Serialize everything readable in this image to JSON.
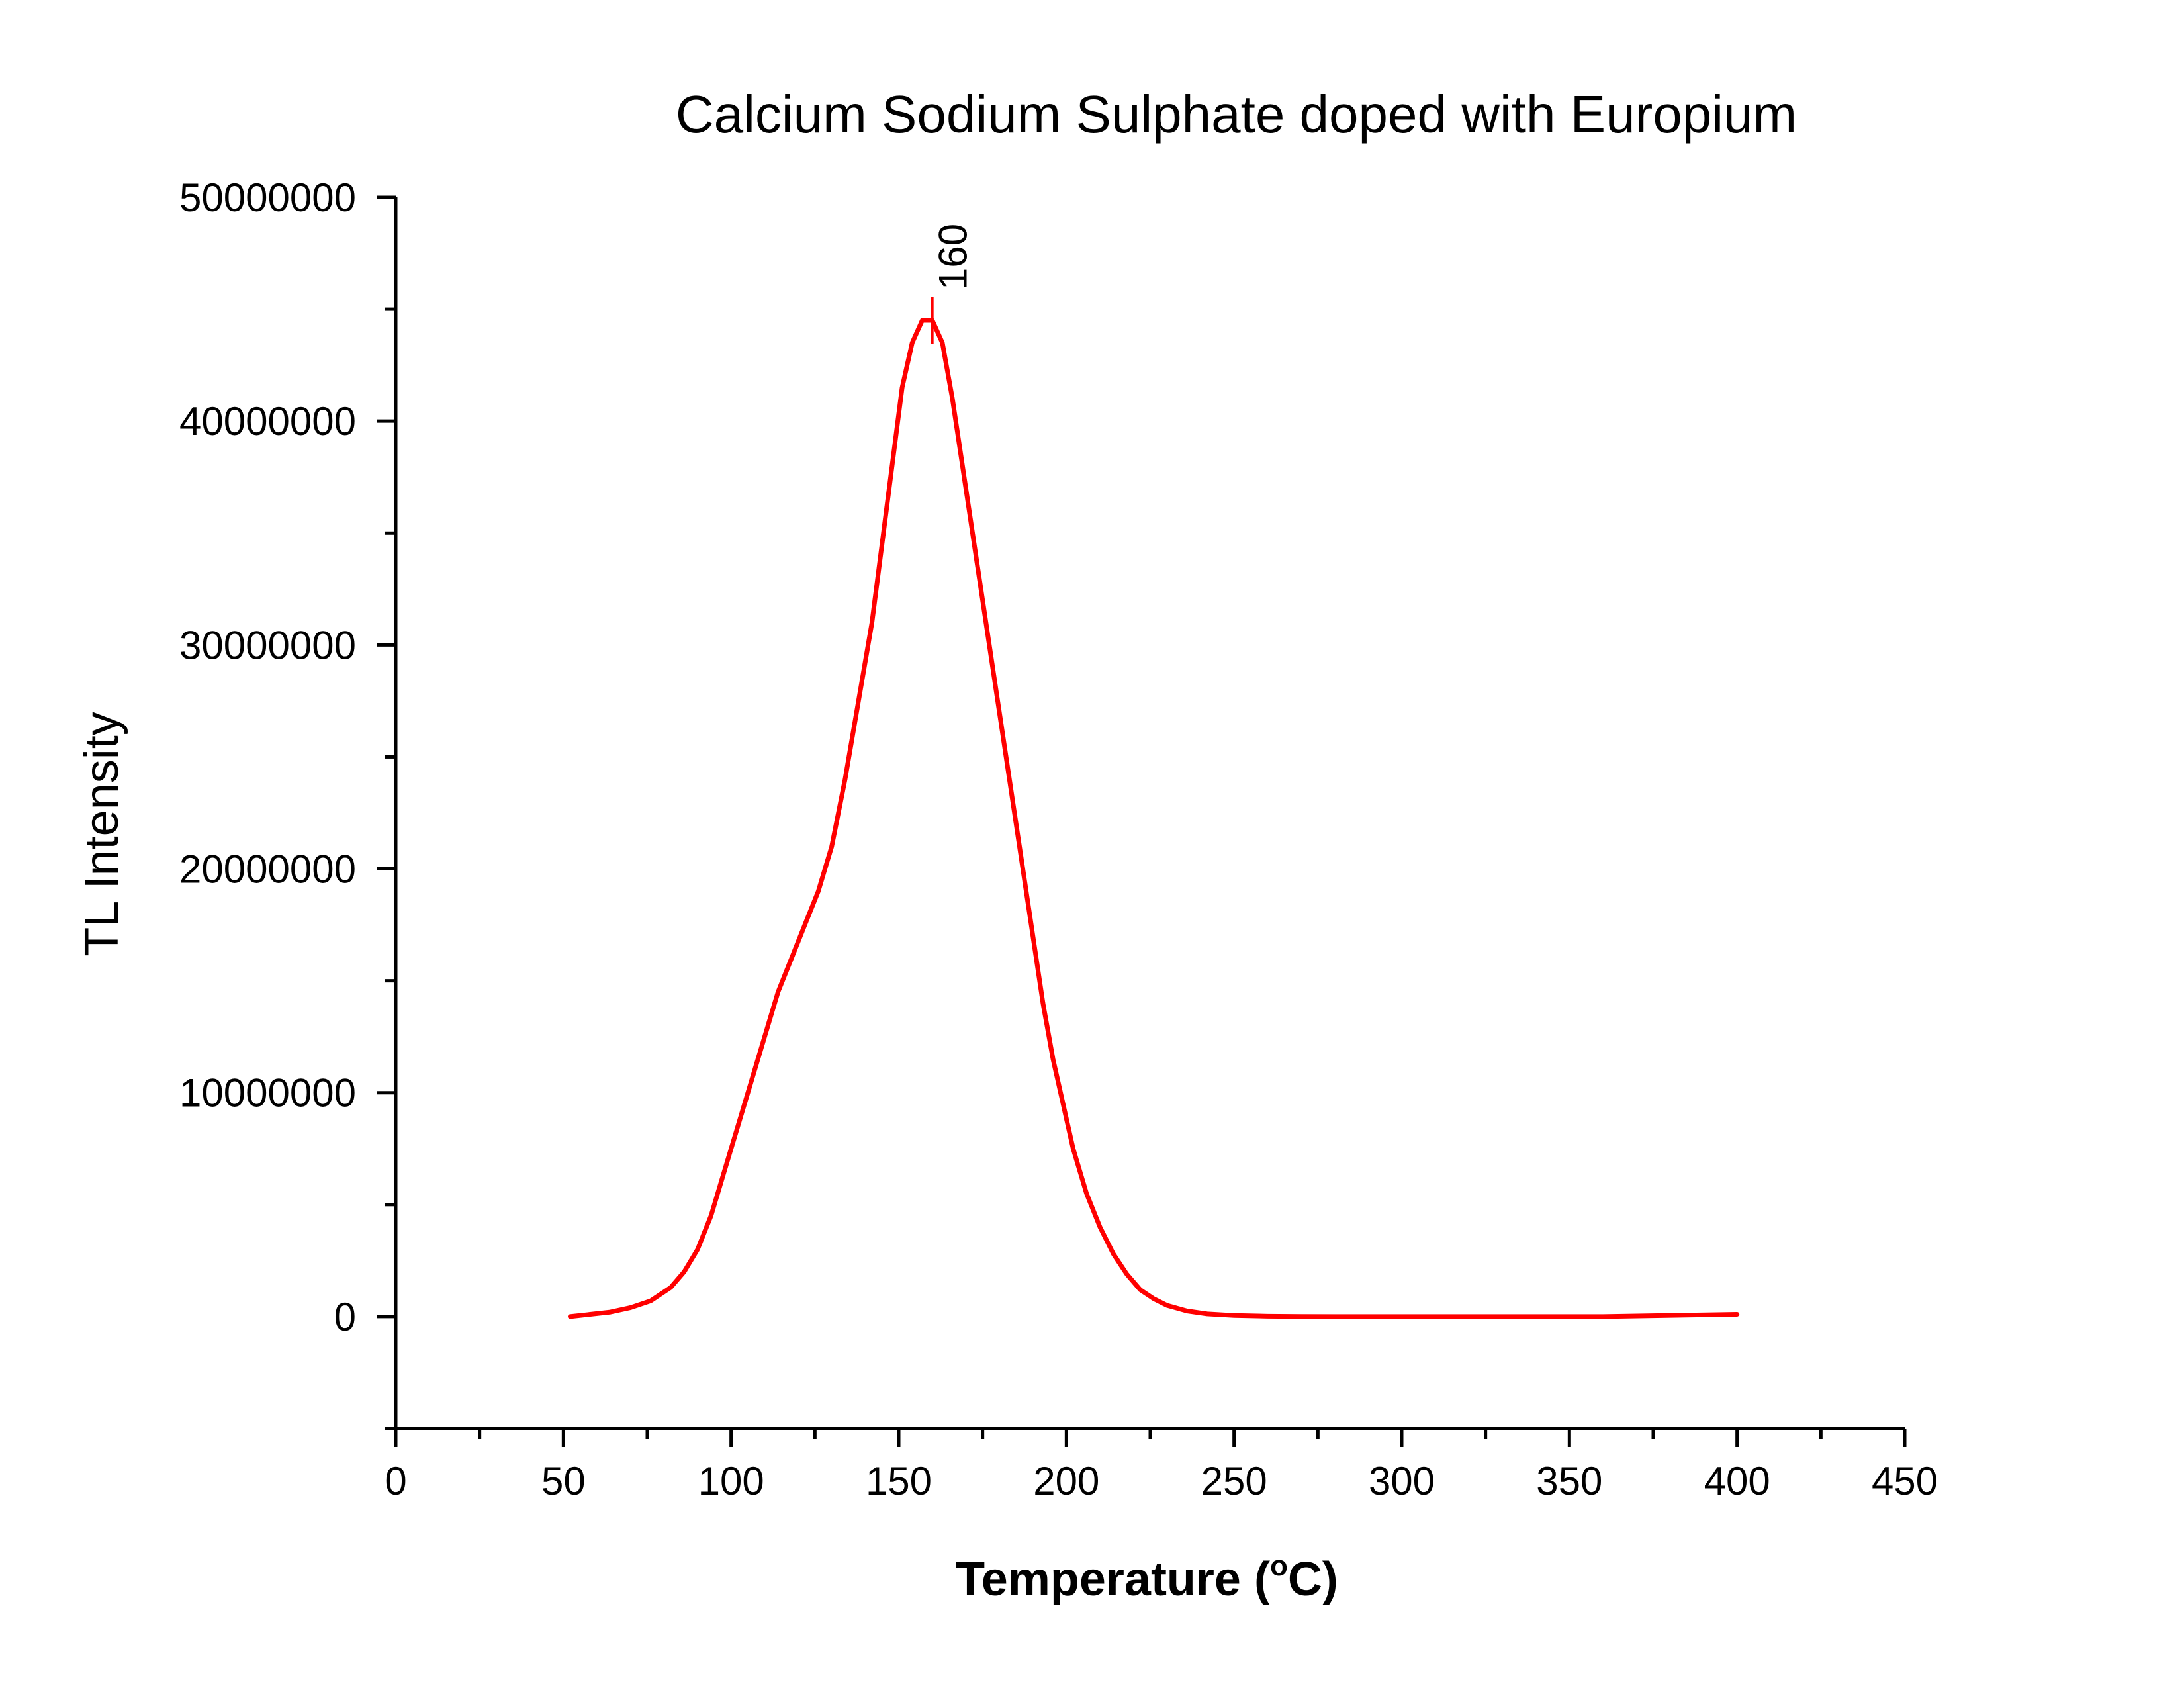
{
  "chart_data": {
    "type": "line",
    "title": "Calcium Sodium Sulphate doped with Europium",
    "xlabel_main": "Temperature (",
    "xlabel_sup": "o",
    "xlabel_end": "C)",
    "ylabel": "TL Intensity",
    "xlim": [
      0,
      450
    ],
    "ylim": [
      -5000000,
      50000000
    ],
    "x_ticks": [
      0,
      50,
      100,
      150,
      200,
      250,
      300,
      350,
      400,
      450
    ],
    "x_tick_labels": [
      "0",
      "50",
      "100",
      "150",
      "200",
      "250",
      "300",
      "350",
      "400",
      "450"
    ],
    "x_minor_step": 25,
    "y_ticks": [
      0,
      10000000,
      20000000,
      30000000,
      40000000,
      50000000
    ],
    "y_tick_labels": [
      "0",
      "10000000",
      "20000000",
      "30000000",
      "40000000",
      "50000000"
    ],
    "y_minor_step": 5000000,
    "grid": false,
    "legend": "none",
    "series": [
      {
        "color": "#ff0000",
        "x": [
          52,
          58,
          64,
          70,
          76,
          82,
          86,
          90,
          94,
          98,
          102,
          106,
          110,
          114,
          118,
          122,
          126,
          130,
          134,
          138,
          142,
          145,
          148,
          151,
          154,
          157,
          160,
          163,
          166,
          169,
          172,
          175,
          178,
          181,
          184,
          187,
          190,
          193,
          196,
          199,
          202,
          206,
          210,
          214,
          218,
          222,
          226,
          230,
          236,
          242,
          250,
          260,
          270,
          280,
          300,
          330,
          360,
          400
        ],
        "y": [
          0,
          100000,
          200000,
          400000,
          700000,
          1300000,
          2000000,
          3000000,
          4500000,
          6500000,
          8500000,
          10500000,
          12500000,
          14500000,
          16000000,
          17500000,
          19000000,
          21000000,
          24000000,
          27500000,
          31000000,
          34500000,
          38000000,
          41500000,
          43500000,
          44500000,
          44500000,
          43500000,
          41000000,
          38000000,
          35000000,
          32000000,
          29000000,
          26000000,
          23000000,
          20000000,
          17000000,
          14000000,
          11500000,
          9500000,
          7500000,
          5500000,
          4000000,
          2800000,
          1900000,
          1200000,
          800000,
          500000,
          250000,
          120000,
          50000,
          15000,
          5000,
          0,
          0,
          0,
          0,
          100000
        ]
      }
    ],
    "annotation": {
      "x": 160,
      "y": 44500000,
      "label": "160"
    }
  }
}
